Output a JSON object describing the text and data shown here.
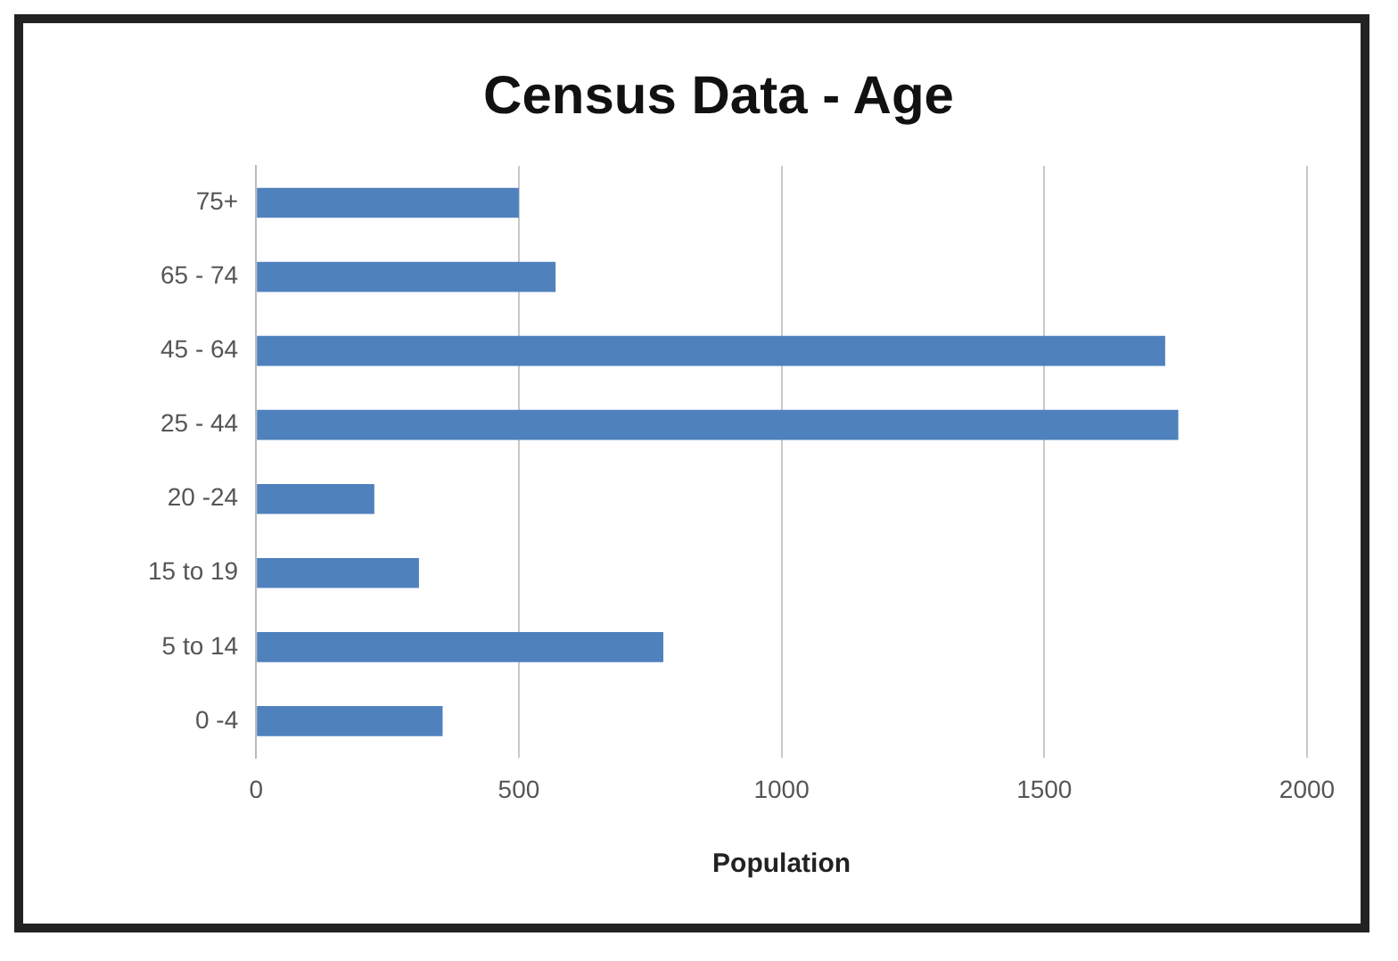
{
  "chart_data": {
    "type": "bar",
    "orientation": "horizontal",
    "title": "Census Data - Age",
    "xlabel": "Population",
    "categories": [
      "75+",
      "65 - 74",
      "45 - 64",
      "25 - 44",
      "20 -24",
      "15 to 19",
      "5 to 14",
      "0 -4"
    ],
    "values": [
      500,
      570,
      1730,
      1755,
      225,
      310,
      775,
      355
    ],
    "color": "#4f81bd",
    "xlim": [
      0,
      2000
    ],
    "xticks": [
      0,
      500,
      1000,
      1500,
      2000
    ],
    "grid": "x",
    "legend": false
  }
}
